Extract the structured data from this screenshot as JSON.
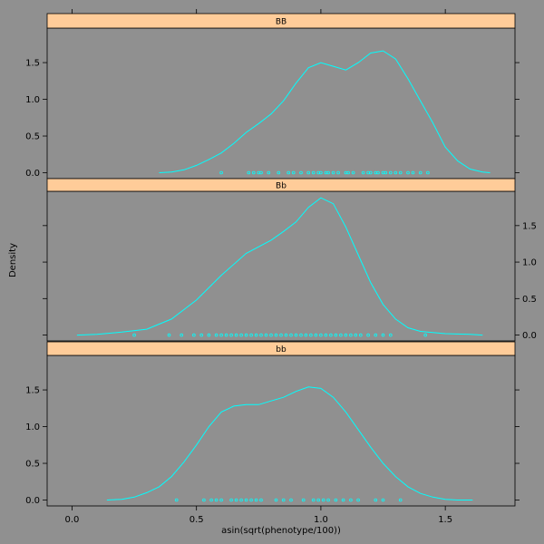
{
  "chart_data": {
    "type": "line",
    "subtype": "lattice-densityplot",
    "xlabel": "asin(sqrt(phenotype/100))",
    "ylabel": "Density",
    "xlim": [
      -0.1,
      1.78
    ],
    "ylim": [
      -0.08,
      1.97
    ],
    "x_ticks": [
      0.0,
      0.5,
      1.0,
      1.5
    ],
    "x_tick_labels": [
      "0.0",
      "0.5",
      "1.0",
      "1.5"
    ],
    "y_ticks": [
      0.0,
      0.5,
      1.0,
      1.5
    ],
    "y_tick_labels": [
      "0.0",
      "0.5",
      "1.0",
      "1.5"
    ],
    "grid": false,
    "colors": {
      "background": "#909090",
      "line": "#00ffff",
      "strip": "#ffcc99",
      "frame": "#000000"
    },
    "panels": [
      {
        "strip_label": "BB",
        "y_axis_side": "left",
        "density": {
          "x": [
            0.35,
            0.4,
            0.45,
            0.5,
            0.55,
            0.6,
            0.65,
            0.7,
            0.75,
            0.8,
            0.85,
            0.9,
            0.95,
            1.0,
            1.05,
            1.1,
            1.15,
            1.2,
            1.25,
            1.3,
            1.35,
            1.4,
            1.45,
            1.5,
            1.55,
            1.6,
            1.65,
            1.68
          ],
          "y": [
            0.0,
            0.01,
            0.04,
            0.1,
            0.18,
            0.27,
            0.4,
            0.55,
            0.67,
            0.8,
            0.98,
            1.22,
            1.43,
            1.5,
            1.45,
            1.4,
            1.5,
            1.63,
            1.66,
            1.55,
            1.28,
            0.98,
            0.68,
            0.35,
            0.16,
            0.05,
            0.01,
            0.0
          ]
        },
        "rug": [
          0.6,
          0.71,
          0.73,
          0.75,
          0.76,
          0.79,
          0.83,
          0.87,
          0.89,
          0.92,
          0.95,
          0.97,
          0.99,
          1.0,
          1.02,
          1.03,
          1.05,
          1.07,
          1.1,
          1.11,
          1.13,
          1.17,
          1.19,
          1.2,
          1.22,
          1.23,
          1.25,
          1.26,
          1.28,
          1.3,
          1.32,
          1.35,
          1.37,
          1.4,
          1.43
        ]
      },
      {
        "strip_label": "Bb",
        "y_axis_side": "right",
        "density": {
          "x": [
            0.02,
            0.1,
            0.2,
            0.3,
            0.4,
            0.5,
            0.6,
            0.7,
            0.8,
            0.85,
            0.9,
            0.95,
            1.0,
            1.05,
            1.1,
            1.15,
            1.2,
            1.25,
            1.3,
            1.35,
            1.4,
            1.5,
            1.6,
            1.65
          ],
          "y": [
            0.0,
            0.01,
            0.04,
            0.08,
            0.22,
            0.48,
            0.82,
            1.12,
            1.3,
            1.42,
            1.55,
            1.75,
            1.88,
            1.8,
            1.48,
            1.1,
            0.72,
            0.42,
            0.22,
            0.1,
            0.05,
            0.02,
            0.01,
            0.0
          ]
        },
        "rug": [
          0.25,
          0.39,
          0.44,
          0.49,
          0.52,
          0.55,
          0.58,
          0.6,
          0.62,
          0.64,
          0.66,
          0.68,
          0.7,
          0.72,
          0.74,
          0.76,
          0.78,
          0.8,
          0.82,
          0.84,
          0.86,
          0.88,
          0.9,
          0.92,
          0.94,
          0.96,
          0.98,
          1.0,
          1.02,
          1.04,
          1.06,
          1.08,
          1.1,
          1.12,
          1.14,
          1.16,
          1.19,
          1.22,
          1.25,
          1.28,
          1.42
        ]
      },
      {
        "strip_label": "bb",
        "y_axis_side": "left",
        "density": {
          "x": [
            0.14,
            0.2,
            0.25,
            0.3,
            0.35,
            0.4,
            0.45,
            0.5,
            0.55,
            0.6,
            0.65,
            0.7,
            0.75,
            0.8,
            0.85,
            0.9,
            0.95,
            1.0,
            1.05,
            1.1,
            1.15,
            1.2,
            1.25,
            1.3,
            1.35,
            1.4,
            1.45,
            1.5,
            1.55,
            1.61
          ],
          "y": [
            0.0,
            0.01,
            0.04,
            0.1,
            0.18,
            0.32,
            0.52,
            0.75,
            1.0,
            1.2,
            1.28,
            1.3,
            1.3,
            1.35,
            1.4,
            1.48,
            1.54,
            1.52,
            1.4,
            1.2,
            0.96,
            0.72,
            0.5,
            0.32,
            0.18,
            0.09,
            0.04,
            0.01,
            0.0,
            0.0
          ]
        },
        "rug": [
          0.42,
          0.53,
          0.56,
          0.58,
          0.6,
          0.64,
          0.66,
          0.68,
          0.7,
          0.72,
          0.74,
          0.76,
          0.82,
          0.85,
          0.88,
          0.93,
          0.97,
          0.99,
          1.01,
          1.03,
          1.06,
          1.09,
          1.12,
          1.15,
          1.22,
          1.25,
          1.32
        ]
      }
    ]
  }
}
